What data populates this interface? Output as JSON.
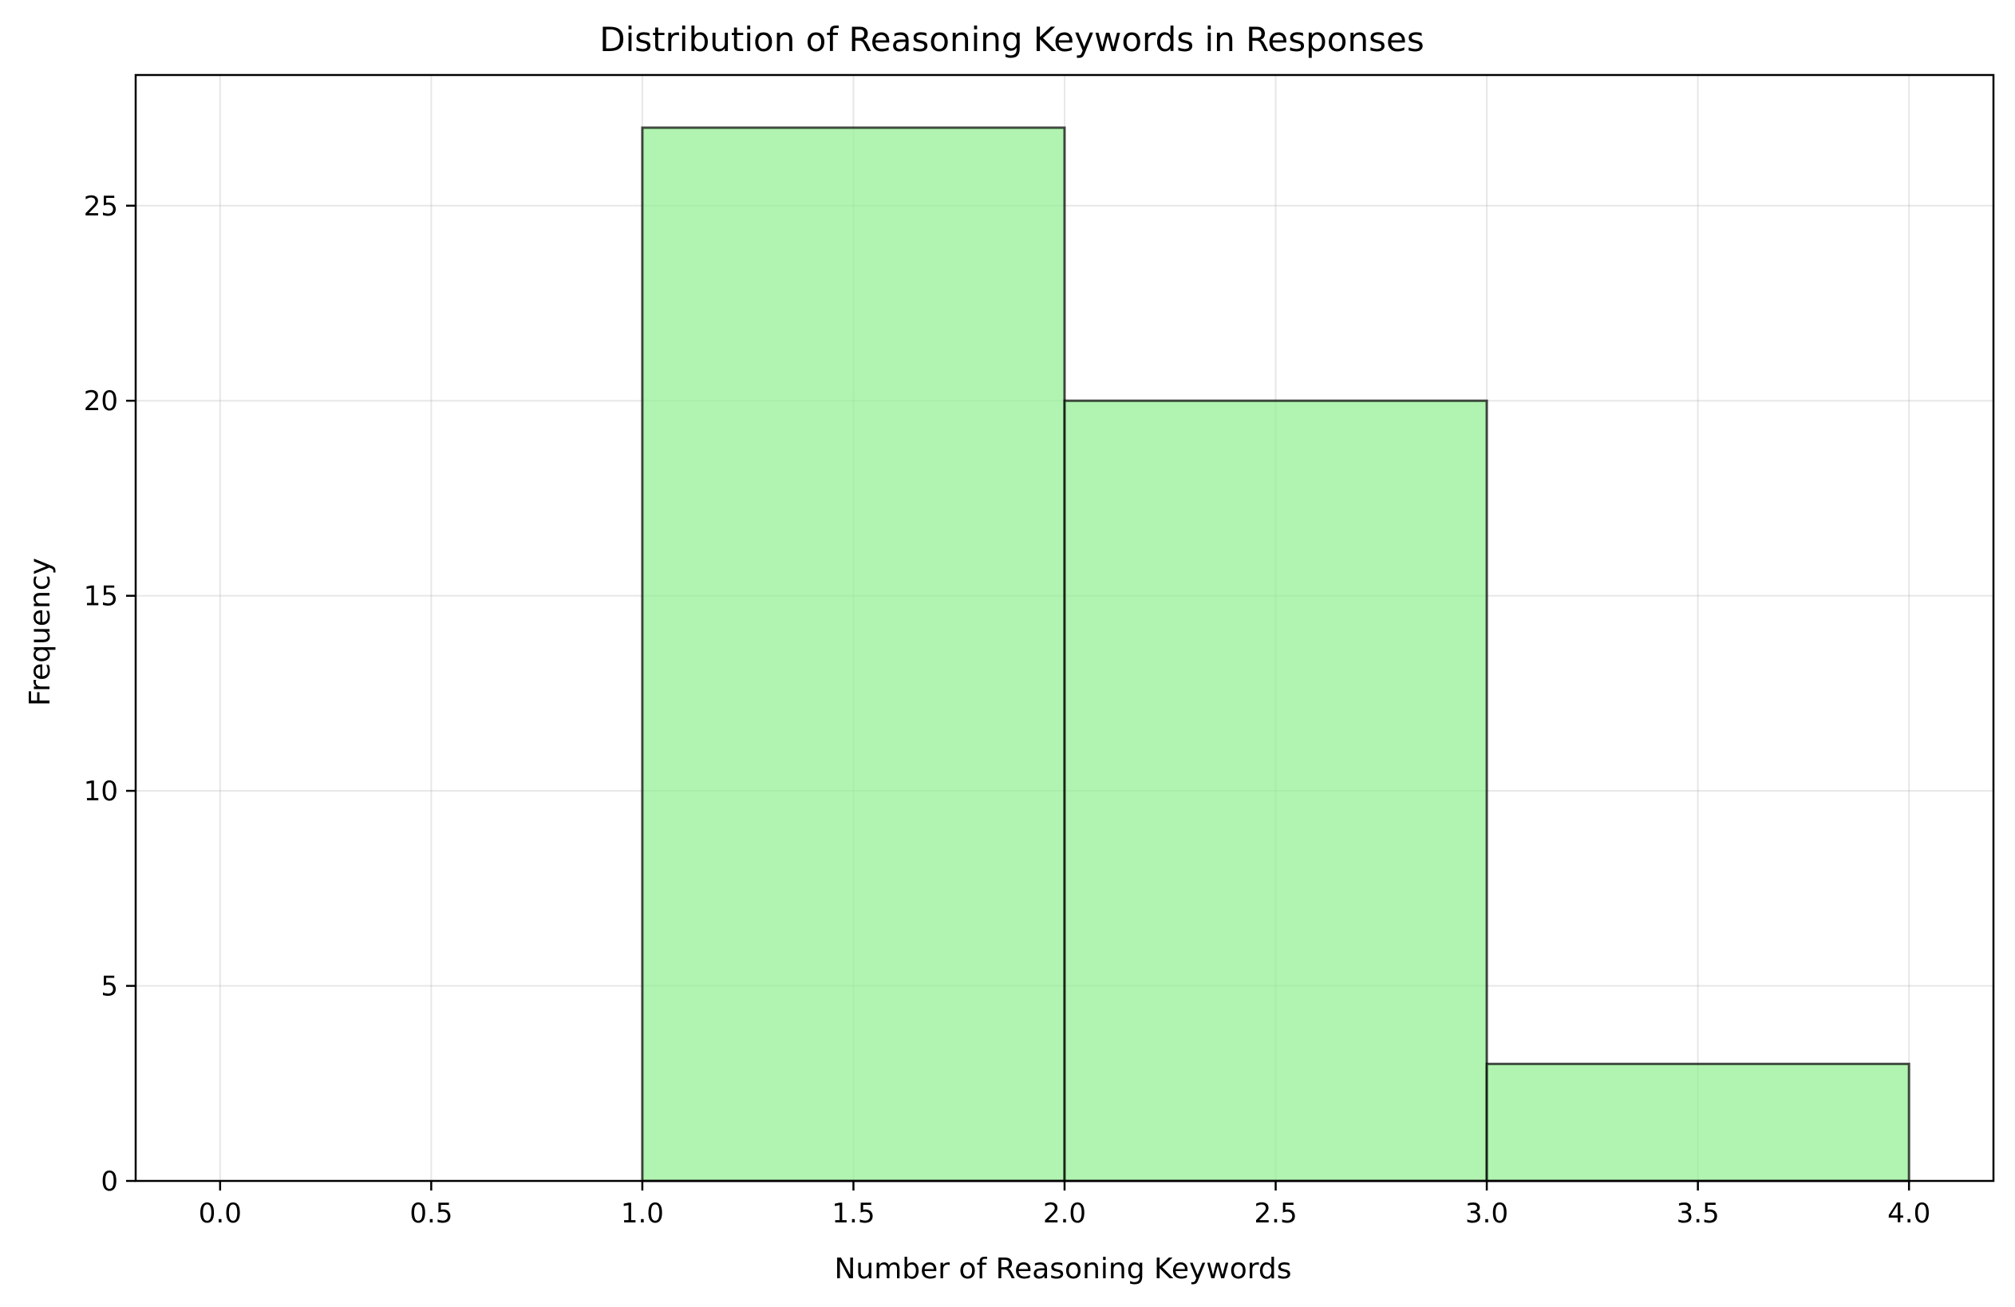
{
  "chart_data": {
    "type": "bar",
    "histogram": true,
    "title": "Distribution of Reasoning Keywords in Responses",
    "xlabel": "Number of Reasoning Keywords",
    "ylabel": "Frequency",
    "bins": [
      {
        "start": 0.0,
        "end": 1.0,
        "value": 0
      },
      {
        "start": 1.0,
        "end": 2.0,
        "value": 27
      },
      {
        "start": 2.0,
        "end": 3.0,
        "value": 20
      },
      {
        "start": 3.0,
        "end": 4.0,
        "value": 3
      }
    ],
    "xlim": [
      -0.2,
      4.2
    ],
    "ylim": [
      0,
      28.35
    ],
    "xticks": [
      0.0,
      0.5,
      1.0,
      1.5,
      2.0,
      2.5,
      3.0,
      3.5,
      4.0
    ],
    "xtick_labels": [
      "0.0",
      "0.5",
      "1.0",
      "1.5",
      "2.0",
      "2.5",
      "3.0",
      "3.5",
      "4.0"
    ],
    "yticks": [
      0,
      5,
      10,
      15,
      20,
      25
    ],
    "ytick_labels": [
      "0",
      "5",
      "10",
      "15",
      "20",
      "25"
    ],
    "grid": true,
    "colors": {
      "bar_fill": "#90ee90",
      "bar_fill_opacity": 0.7,
      "bar_edge": "#000000",
      "bar_edge_opacity": 0.7,
      "grid": "#b0b0b0",
      "axes": "#000000"
    }
  }
}
